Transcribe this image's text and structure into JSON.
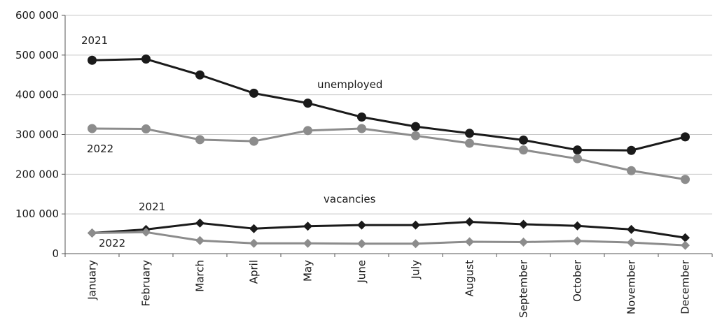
{
  "chart_data": {
    "type": "line",
    "categories": [
      "January",
      "February",
      "March",
      "April",
      "May",
      "June",
      "July",
      "August",
      "September",
      "October",
      "November",
      "December"
    ],
    "ylim": [
      0,
      600000
    ],
    "yticks": [
      0,
      100000,
      200000,
      300000,
      400000,
      500000,
      600000
    ],
    "ytick_labels": [
      "0",
      "100 000",
      "200 000",
      "300 000",
      "400 000",
      "500 000",
      "600 000"
    ],
    "grid": "horizontal",
    "series": [
      {
        "name": "2021",
        "group": "unemployed",
        "color": "#1a1a1a",
        "marker": "circle",
        "values": [
          487000,
          490000,
          450000,
          404000,
          379000,
          344000,
          320000,
          303000,
          286000,
          261000,
          260000,
          294000
        ]
      },
      {
        "name": "2022",
        "group": "unemployed",
        "color": "#8c8c8c",
        "marker": "circle",
        "values": [
          315000,
          314000,
          287000,
          283000,
          310000,
          315000,
          297000,
          278000,
          261000,
          239000,
          209000,
          187000
        ]
      },
      {
        "name": "2021",
        "group": "vacancies",
        "color": "#1a1a1a",
        "marker": "diamond",
        "values": [
          52000,
          61000,
          77000,
          63000,
          69000,
          72000,
          72000,
          80000,
          74000,
          70000,
          61000,
          40000
        ]
      },
      {
        "name": "2022",
        "group": "vacancies",
        "color": "#8c8c8c",
        "marker": "diamond",
        "values": [
          52000,
          54000,
          33000,
          26000,
          26000,
          25000,
          25000,
          30000,
          29000,
          32000,
          28000,
          21000
        ]
      }
    ],
    "annotations": [
      {
        "id": "unemp-2021",
        "text": "2021"
      },
      {
        "id": "unemp-2022",
        "text": "2022"
      },
      {
        "id": "unemp-label",
        "text": "unemployed"
      },
      {
        "id": "vac-2021",
        "text": "2021"
      },
      {
        "id": "vac-2022",
        "text": "2022"
      },
      {
        "id": "vac-label",
        "text": "vacancies"
      }
    ]
  }
}
